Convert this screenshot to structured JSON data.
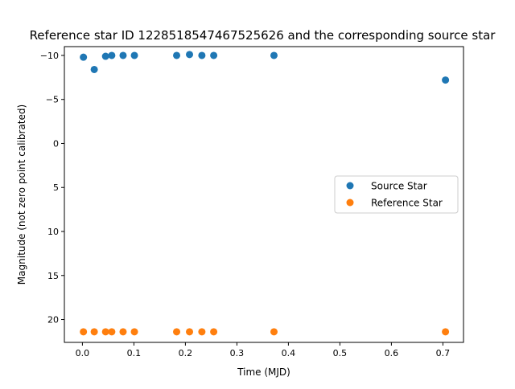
{
  "chart_data": {
    "type": "scatter",
    "title": "Reference star ID 1228518547467525626 and the corresponding source star",
    "xlabel": "Time (MJD)",
    "ylabel": "Magnitude (not zero point calibrated)",
    "xlim": [
      -0.035,
      0.74
    ],
    "ylim": [
      22.6,
      -11.0
    ],
    "y_inverted": true,
    "xticks": [
      0.0,
      0.1,
      0.2,
      0.3,
      0.4,
      0.5,
      0.6,
      0.7
    ],
    "xtick_labels": [
      "0.0",
      "0.1",
      "0.2",
      "0.3",
      "0.4",
      "0.5",
      "0.6",
      "0.7"
    ],
    "yticks": [
      -10,
      -5,
      0,
      5,
      10,
      15,
      20
    ],
    "ytick_labels": [
      "−10",
      "−5",
      "0",
      "5",
      "10",
      "15",
      "20"
    ],
    "grid": false,
    "legend_position": "center-right",
    "series": [
      {
        "name": "Source Star",
        "color": "#1f77b4",
        "x": [
          0.002,
          0.023,
          0.045,
          0.057,
          0.079,
          0.101,
          0.183,
          0.208,
          0.232,
          0.255,
          0.372,
          0.705
        ],
        "y": [
          -9.8,
          -8.4,
          -9.9,
          -10.0,
          -10.0,
          -10.0,
          -10.0,
          -10.1,
          -10.0,
          -10.0,
          -10.0,
          -7.2
        ]
      },
      {
        "name": "Reference Star",
        "color": "#ff7f0e",
        "x": [
          0.002,
          0.023,
          0.045,
          0.057,
          0.079,
          0.101,
          0.183,
          0.208,
          0.232,
          0.255,
          0.372,
          0.705
        ],
        "y": [
          21.4,
          21.4,
          21.4,
          21.4,
          21.4,
          21.4,
          21.4,
          21.4,
          21.4,
          21.4,
          21.4,
          21.4
        ]
      }
    ]
  }
}
